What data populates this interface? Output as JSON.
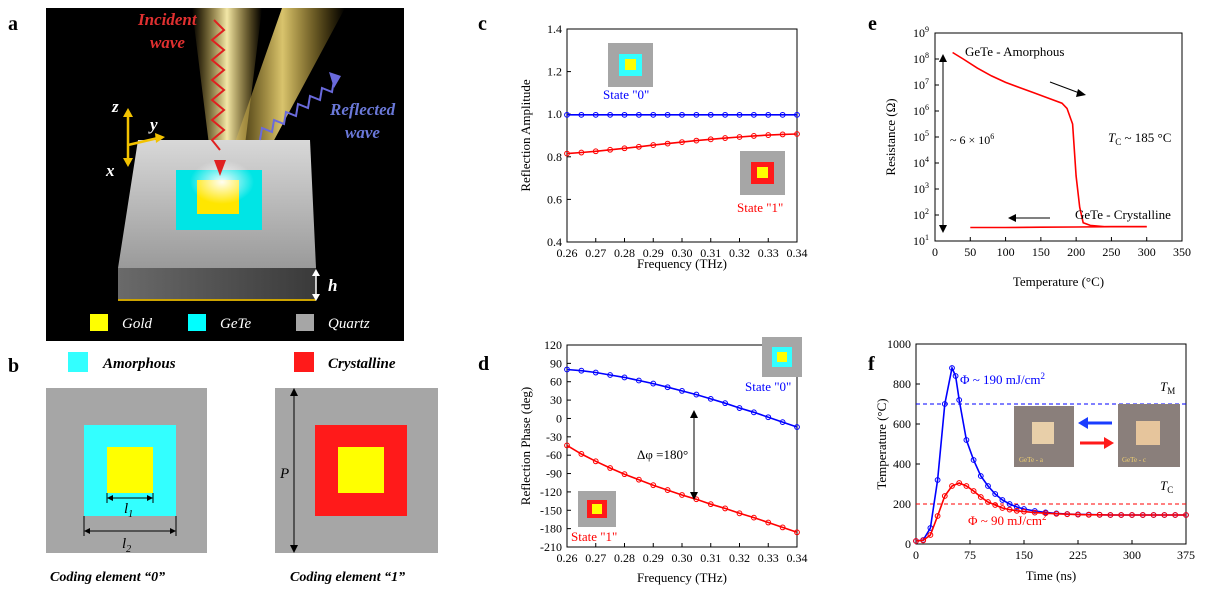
{
  "panels": {
    "a": {
      "letter": "a",
      "incident_line1": "Incident",
      "incident_line2": "wave",
      "reflected_line1": "Reflected",
      "reflected_line2": "wave",
      "axis_z": "z",
      "axis_y": "y",
      "axis_x": "x",
      "thickness": "h",
      "legend": [
        {
          "label": "Gold",
          "color": "#ffff00"
        },
        {
          "label": "GeTe",
          "color": "#00ffff"
        },
        {
          "label": "Quartz",
          "color": "#a6a6a6"
        }
      ]
    },
    "b": {
      "letter": "b",
      "amorphous_label": "Amorphous",
      "amorphous_color": "#33ffff",
      "crystalline_label": "Crystalline",
      "crystalline_color": "#ff1a1a",
      "l1": "l",
      "l1_sub": "1",
      "l2": "l",
      "l2_sub": "2",
      "period": "P",
      "caption0": "Coding element “0”",
      "caption1": "Coding element “1”"
    },
    "c": {
      "letter": "c",
      "state0": "State \"0\"",
      "state1": "State \"1\""
    },
    "d": {
      "letter": "d",
      "state0": "State \"0\"",
      "state1": "State \"1\"",
      "annotation": "Δφ =180°"
    },
    "e": {
      "letter": "e",
      "label_amorphous": "GeTe - Amorphous",
      "label_crystalline": "GeTe - Crystalline",
      "tc_T": "T",
      "tc_sub": "C",
      "tc_rest": " ~ 185 °C",
      "ratio_main": "~ 6 × 10",
      "ratio_exp": "6"
    },
    "f": {
      "letter": "f",
      "phi_high": "Φ ~ 190 mJ/cm",
      "phi_low": "Φ ~ 90 mJ/cm",
      "sq": "2",
      "tm_T": "T",
      "tm_sub": "M",
      "tc_T": "T",
      "tc_sub": "C",
      "inset_a": "GeTe - a",
      "inset_c": "GeTe - c"
    }
  },
  "chart_data": [
    {
      "panel": "c",
      "type": "line",
      "xlabel": "Frequency (THz)",
      "ylabel": "Reflection Amplitude",
      "xlim": [
        0.26,
        0.34
      ],
      "ylim": [
        0.4,
        1.4
      ],
      "xticks": [
        "0.26",
        "0.27",
        "0.28",
        "0.29",
        "0.30",
        "0.31",
        "0.32",
        "0.33",
        "0.34"
      ],
      "yticks": [
        "0.4",
        "0.6",
        "0.8",
        "1.0",
        "1.2",
        "1.4"
      ],
      "x": [
        0.26,
        0.265,
        0.27,
        0.275,
        0.28,
        0.285,
        0.29,
        0.295,
        0.3,
        0.305,
        0.31,
        0.315,
        0.32,
        0.325,
        0.33,
        0.335,
        0.34
      ],
      "series": [
        {
          "name": "State \"0\"",
          "color": "#0000ff",
          "values": [
            0.997,
            0.997,
            0.997,
            0.997,
            0.997,
            0.997,
            0.997,
            0.997,
            0.997,
            0.997,
            0.997,
            0.997,
            0.997,
            0.997,
            0.997,
            0.997,
            0.997
          ]
        },
        {
          "name": "State \"1\"",
          "color": "#ff0000",
          "values": [
            0.815,
            0.82,
            0.826,
            0.833,
            0.84,
            0.847,
            0.855,
            0.862,
            0.869,
            0.876,
            0.882,
            0.888,
            0.893,
            0.898,
            0.902,
            0.905,
            0.907
          ]
        }
      ]
    },
    {
      "panel": "d",
      "type": "line",
      "xlabel": "Frequency (THz)",
      "ylabel": "Reflection Phase (deg)",
      "xlim": [
        0.26,
        0.34
      ],
      "ylim": [
        -210,
        120
      ],
      "xticks": [
        "0.26",
        "0.27",
        "0.28",
        "0.29",
        "0.30",
        "0.31",
        "0.32",
        "0.33",
        "0.34"
      ],
      "yticks": [
        "120",
        "90",
        "60",
        "30",
        "0",
        "-30",
        "-60",
        "-90",
        "-120",
        "-150",
        "-180",
        "-210"
      ],
      "x": [
        0.26,
        0.265,
        0.27,
        0.275,
        0.28,
        0.285,
        0.29,
        0.295,
        0.3,
        0.305,
        0.31,
        0.315,
        0.32,
        0.325,
        0.33,
        0.335,
        0.34
      ],
      "series": [
        {
          "name": "State \"0\"",
          "color": "#0000ff",
          "values": [
            80,
            78,
            75,
            71,
            67,
            62,
            57,
            51,
            45,
            39,
            32,
            25,
            17,
            10,
            2,
            -6,
            -14
          ]
        },
        {
          "name": "State \"1\"",
          "color": "#ff0000",
          "values": [
            -44,
            -58,
            -70,
            -81,
            -91,
            -100,
            -109,
            -117,
            -125,
            -132,
            -140,
            -147,
            -155,
            -162,
            -170,
            -178,
            -186
          ]
        }
      ]
    },
    {
      "panel": "e",
      "type": "line",
      "xlabel": "Temperature (°C)",
      "ylabel": "Resistance (Ω)",
      "yscale": "log",
      "xlim": [
        0,
        350
      ],
      "ylim_exp": [
        1,
        9
      ],
      "xticks": [
        "0",
        "50",
        "100",
        "150",
        "200",
        "250",
        "300",
        "350"
      ],
      "yticks_exp": [
        "1",
        "2",
        "3",
        "4",
        "5",
        "6",
        "7",
        "8",
        "9"
      ],
      "series": [
        {
          "name": "heating",
          "color": "#ff0000",
          "x": [
            25,
            40,
            60,
            80,
            100,
            120,
            140,
            160,
            180,
            187,
            195,
            200,
            205,
            210,
            220,
            240,
            260,
            280,
            300
          ],
          "log10_values": [
            8.25,
            8.0,
            7.65,
            7.35,
            7.1,
            6.9,
            6.7,
            6.5,
            6.3,
            6.1,
            5.5,
            3.5,
            2.3,
            1.7,
            1.6,
            1.55,
            1.55,
            1.55,
            1.55
          ]
        },
        {
          "name": "cooling",
          "color": "#ff0000",
          "x": [
            300,
            250,
            200,
            150,
            100,
            50
          ],
          "log10_values": [
            1.55,
            1.55,
            1.54,
            1.53,
            1.52,
            1.52
          ]
        }
      ]
    },
    {
      "panel": "f",
      "type": "line",
      "xlabel": "Time (ns)",
      "ylabel": "Temperature (°C)",
      "xlim": [
        0,
        375
      ],
      "ylim": [
        0,
        1000
      ],
      "xticks": [
        "0",
        "75",
        "150",
        "225",
        "300",
        "375"
      ],
      "yticks": [
        "0",
        "200",
        "400",
        "600",
        "800",
        "1000"
      ],
      "hlines": [
        {
          "y": 700,
          "color": "#0000ff"
        },
        {
          "y": 200,
          "color": "#ff0000"
        }
      ],
      "series": [
        {
          "name": "Φ ~ 190 mJ/cm2",
          "color": "#0000ff",
          "x": [
            0,
            10,
            20,
            30,
            40,
            50,
            55,
            60,
            70,
            80,
            90,
            100,
            110,
            120,
            130,
            140,
            150,
            165,
            180,
            195,
            210,
            225,
            240,
            255,
            270,
            285,
            300,
            315,
            330,
            345,
            360,
            375
          ],
          "values": [
            15,
            20,
            80,
            320,
            700,
            880,
            840,
            720,
            520,
            420,
            340,
            290,
            250,
            220,
            200,
            185,
            175,
            165,
            158,
            153,
            150,
            148,
            147,
            146,
            145,
            145,
            145,
            145,
            145,
            145,
            145,
            145
          ]
        },
        {
          "name": "Φ ~ 90 mJ/cm2",
          "color": "#ff0000",
          "x": [
            0,
            10,
            20,
            30,
            40,
            50,
            60,
            70,
            80,
            90,
            100,
            110,
            120,
            130,
            140,
            150,
            165,
            180,
            195,
            210,
            225,
            240,
            255,
            270,
            285,
            300,
            315,
            330,
            345,
            360,
            375
          ],
          "values": [
            15,
            18,
            45,
            140,
            240,
            290,
            305,
            290,
            265,
            235,
            210,
            195,
            180,
            172,
            166,
            162,
            157,
            154,
            151,
            149,
            147,
            146,
            146,
            145,
            145,
            145,
            145,
            145,
            145,
            145,
            145
          ]
        }
      ]
    }
  ]
}
